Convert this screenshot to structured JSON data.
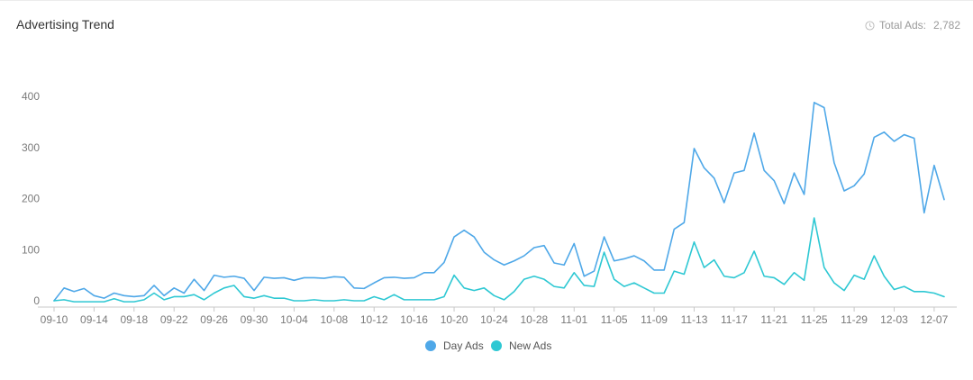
{
  "header": {
    "title": "Advertising Trend",
    "total_label": "Total Ads:",
    "total_value": "2,782",
    "total_icon": "clock-icon"
  },
  "colors": {
    "day_ads": "#4fa8e8",
    "new_ads": "#2ec8d3",
    "axis": "#c8c8c8",
    "tick_text": "#7a7a7a"
  },
  "chart_data": {
    "type": "line",
    "title": "Advertising Trend",
    "xlabel": "",
    "ylabel": "",
    "ylim": [
      0,
      400
    ],
    "yticks": [
      0,
      100,
      200,
      300,
      400
    ],
    "x_start": "09-10",
    "x_tick_labels": [
      "09-10",
      "09-14",
      "09-18",
      "09-22",
      "09-26",
      "09-30",
      "10-04",
      "10-08",
      "10-12",
      "10-16",
      "10-20",
      "10-24",
      "10-28",
      "11-01",
      "11-05",
      "11-09",
      "11-13",
      "11-17",
      "11-21",
      "11-25",
      "11-29",
      "12-03",
      "12-07"
    ],
    "grid": false,
    "legend_position": "bottom-center",
    "series": [
      {
        "name": "Day Ads",
        "color": "#4fa8e8",
        "values": [
          0,
          25,
          18,
          24,
          10,
          5,
          15,
          10,
          8,
          10,
          30,
          10,
          25,
          15,
          42,
          20,
          50,
          46,
          48,
          44,
          20,
          46,
          44,
          45,
          40,
          45,
          45,
          44,
          47,
          46,
          25,
          24,
          35,
          45,
          46,
          44,
          45,
          55,
          55,
          75,
          125,
          138,
          125,
          95,
          80,
          70,
          78,
          88,
          104,
          108,
          74,
          70,
          112,
          48,
          58,
          125,
          78,
          82,
          88,
          78,
          60,
          60,
          140,
          153,
          298,
          260,
          240,
          192,
          250,
          255,
          328,
          255,
          235,
          190,
          250,
          208,
          388,
          378,
          270,
          215,
          225,
          248,
          320,
          330,
          312,
          325,
          318,
          172,
          265,
          198
        ]
      },
      {
        "name": "New Ads",
        "color": "#2ec8d3",
        "values": [
          0,
          2,
          -2,
          -2,
          -2,
          -2,
          4,
          -2,
          -2,
          2,
          15,
          2,
          8,
          8,
          12,
          2,
          15,
          25,
          30,
          8,
          5,
          10,
          5,
          5,
          0,
          0,
          2,
          0,
          0,
          2,
          0,
          0,
          8,
          2,
          12,
          2,
          2,
          2,
          2,
          8,
          50,
          25,
          20,
          25,
          10,
          2,
          18,
          42,
          48,
          42,
          28,
          25,
          55,
          30,
          28,
          95,
          42,
          28,
          35,
          25,
          15,
          15,
          58,
          52,
          115,
          65,
          80,
          48,
          45,
          55,
          97,
          48,
          45,
          32,
          55,
          40,
          162,
          65,
          35,
          20,
          50,
          42,
          88,
          48,
          22,
          28,
          18,
          18,
          15,
          8
        ]
      }
    ]
  },
  "legend": {
    "items": [
      {
        "label": "Day Ads",
        "color": "#4fa8e8"
      },
      {
        "label": "New Ads",
        "color": "#2ec8d3"
      }
    ]
  }
}
